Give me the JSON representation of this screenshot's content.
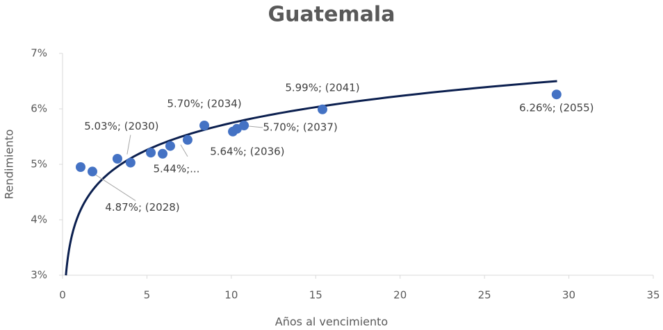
{
  "chart_data": {
    "type": "scatter",
    "title": "Guatemala",
    "x_label": "Años al vencimiento",
    "y_label": "Rendimiento",
    "xlim": [
      0,
      35
    ],
    "ylim": [
      3,
      7
    ],
    "xticks": [
      0,
      5,
      10,
      15,
      20,
      25,
      30,
      35
    ],
    "yticks": [
      {
        "value": 3,
        "label": "3%"
      },
      {
        "value": 4,
        "label": "4%"
      },
      {
        "value": 5,
        "label": "5%"
      },
      {
        "value": 6,
        "label": "6%"
      },
      {
        "value": 7,
        "label": "7%"
      }
    ],
    "grid": false,
    "series": [
      {
        "color": "#4472c4",
        "x": [
          1.07,
          1.77,
          3.25,
          4.03,
          5.23,
          5.93,
          6.38,
          7.41,
          8.4,
          10.09,
          10.33,
          10.75,
          15.4,
          29.27
        ],
        "values": [
          4.95,
          4.87,
          5.1,
          5.03,
          5.21,
          5.19,
          5.33,
          5.44,
          5.7,
          5.59,
          5.64,
          5.7,
          5.99,
          6.26
        ],
        "value_labels": [
          null,
          "4.87%; (2028)",
          null,
          "5.03%; (2030)",
          null,
          null,
          null,
          "5.44%;...",
          "5.70%; (2034)",
          null,
          "5.64%; (2036)",
          "5.70%; (2037)",
          "5.99%; (2041)",
          "6.26%; (2055)"
        ]
      }
    ],
    "trendline": {
      "type": "logarithmic",
      "coefficients": [
        4.129,
        0.702
      ],
      "x_range": [
        0.2,
        29.3
      ],
      "color": "#0b1f4f"
    }
  }
}
